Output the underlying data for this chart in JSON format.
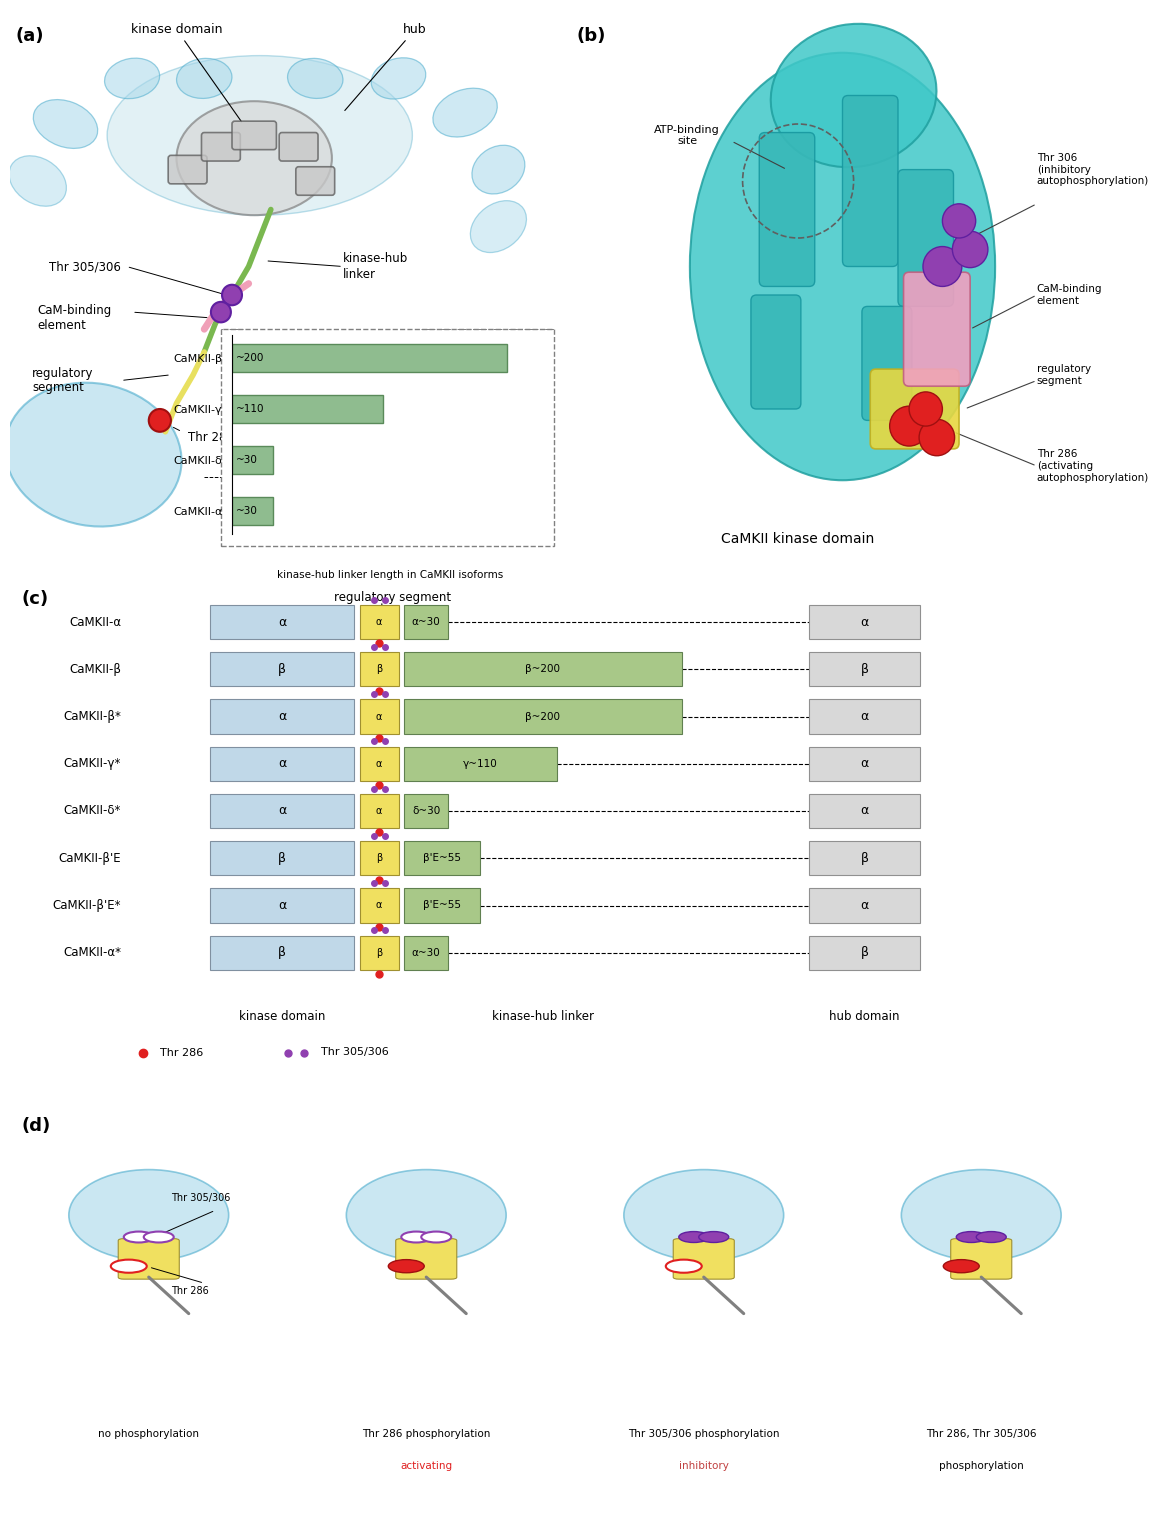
{
  "panel_labels": [
    "(a)",
    "(b)",
    "(c)",
    "(d)"
  ],
  "panel_a_title": "kinase domain",
  "panel_a_hub": "hub",
  "panel_a_labels": [
    "Thr 305/306",
    "CaM-binding\nelement",
    "regulatory\nsegment",
    "Thr 286",
    "kinase-hub\nlinker"
  ],
  "panel_b_title": "CaMKII kinase domain",
  "panel_b_labels": [
    "ATP-binding\nsite",
    "Thr 306\n(inhibitory\nautophosphorylation)",
    "CaM-binding\nelement",
    "regulatory\nsegment",
    "Thr 286\n(activating\nautophosphorylation)"
  ],
  "bar_chart_title": "kinase-hub linker length in CaMKII isoforms",
  "bar_isoforms": [
    "CaMKII-α",
    "CaMKII-δ",
    "CaMKII-γ",
    "CaMKII-β"
  ],
  "bar_values": [
    30,
    30,
    110,
    200
  ],
  "bar_labels": [
    "~30",
    "~30",
    "~110",
    "~200"
  ],
  "bar_color": "#8fbc8f",
  "panel_c_rows": [
    {
      "name": "CaMKII-α",
      "kinase_greek": "α",
      "reg_greek": "α",
      "linker_label": "α~30",
      "linker_value": 30,
      "hub_greek": "α"
    },
    {
      "name": "CaMKII-β",
      "kinase_greek": "β",
      "reg_greek": "β",
      "linker_label": "β~200",
      "linker_value": 200,
      "hub_greek": "β"
    },
    {
      "name": "CaMKII-β*",
      "kinase_greek": "α",
      "reg_greek": "α",
      "linker_label": "β~200",
      "linker_value": 200,
      "hub_greek": "α"
    },
    {
      "name": "CaMKII-γ*",
      "kinase_greek": "α",
      "reg_greek": "α",
      "linker_label": "γ~110",
      "linker_value": 110,
      "hub_greek": "α"
    },
    {
      "name": "CaMKII-δ*",
      "kinase_greek": "α",
      "reg_greek": "α",
      "linker_label": "δ~30",
      "linker_value": 30,
      "hub_greek": "α"
    },
    {
      "name": "CaMKII-β'E",
      "kinase_greek": "β",
      "reg_greek": "β",
      "linker_label": "β'E~55",
      "linker_value": 55,
      "hub_greek": "β"
    },
    {
      "name": "CaMKII-β'E*",
      "kinase_greek": "α",
      "reg_greek": "α",
      "linker_label": "β'E~55",
      "linker_value": 55,
      "hub_greek": "α"
    },
    {
      "name": "CaMKII-α*",
      "kinase_greek": "β",
      "reg_greek": "β",
      "linker_label": "α~30",
      "linker_value": 30,
      "hub_greek": "β"
    }
  ],
  "panel_c_labels": [
    "kinase domain",
    "kinase-hub linker",
    "hub domain"
  ],
  "panel_c_legend_thr286": "Thr 286",
  "panel_c_legend_thr305": "Thr 305/306",
  "panel_d_labels": [
    "no phosphorylation",
    "Thr 286 phosphorylation\nactivating",
    "Thr 305/306 phosphorylation\ninhibitory",
    "Thr 286, Thr 305/306\nphosphorylation"
  ],
  "colors": {
    "light_blue": "#a8d8e8",
    "lighter_blue": "#c8e8f0",
    "green_linker": "#90c070",
    "yellow_reg": "#f5f0a0",
    "pink_cam": "#f0b0c0",
    "purple": "#9050b0",
    "red": "#e02020",
    "gray": "#909090",
    "dark_gray": "#505050",
    "bar_green": "#8fbc8f",
    "kinase_blue": "#b0d8e8",
    "reg_yellow": "#f5e060",
    "linker_green": "#b8d898",
    "hub_gray": "#d8d8d8",
    "pink_cam_binding": "#f0c8d8",
    "activating_red": "#e02020",
    "inhibitory_pink": "#e87070"
  }
}
